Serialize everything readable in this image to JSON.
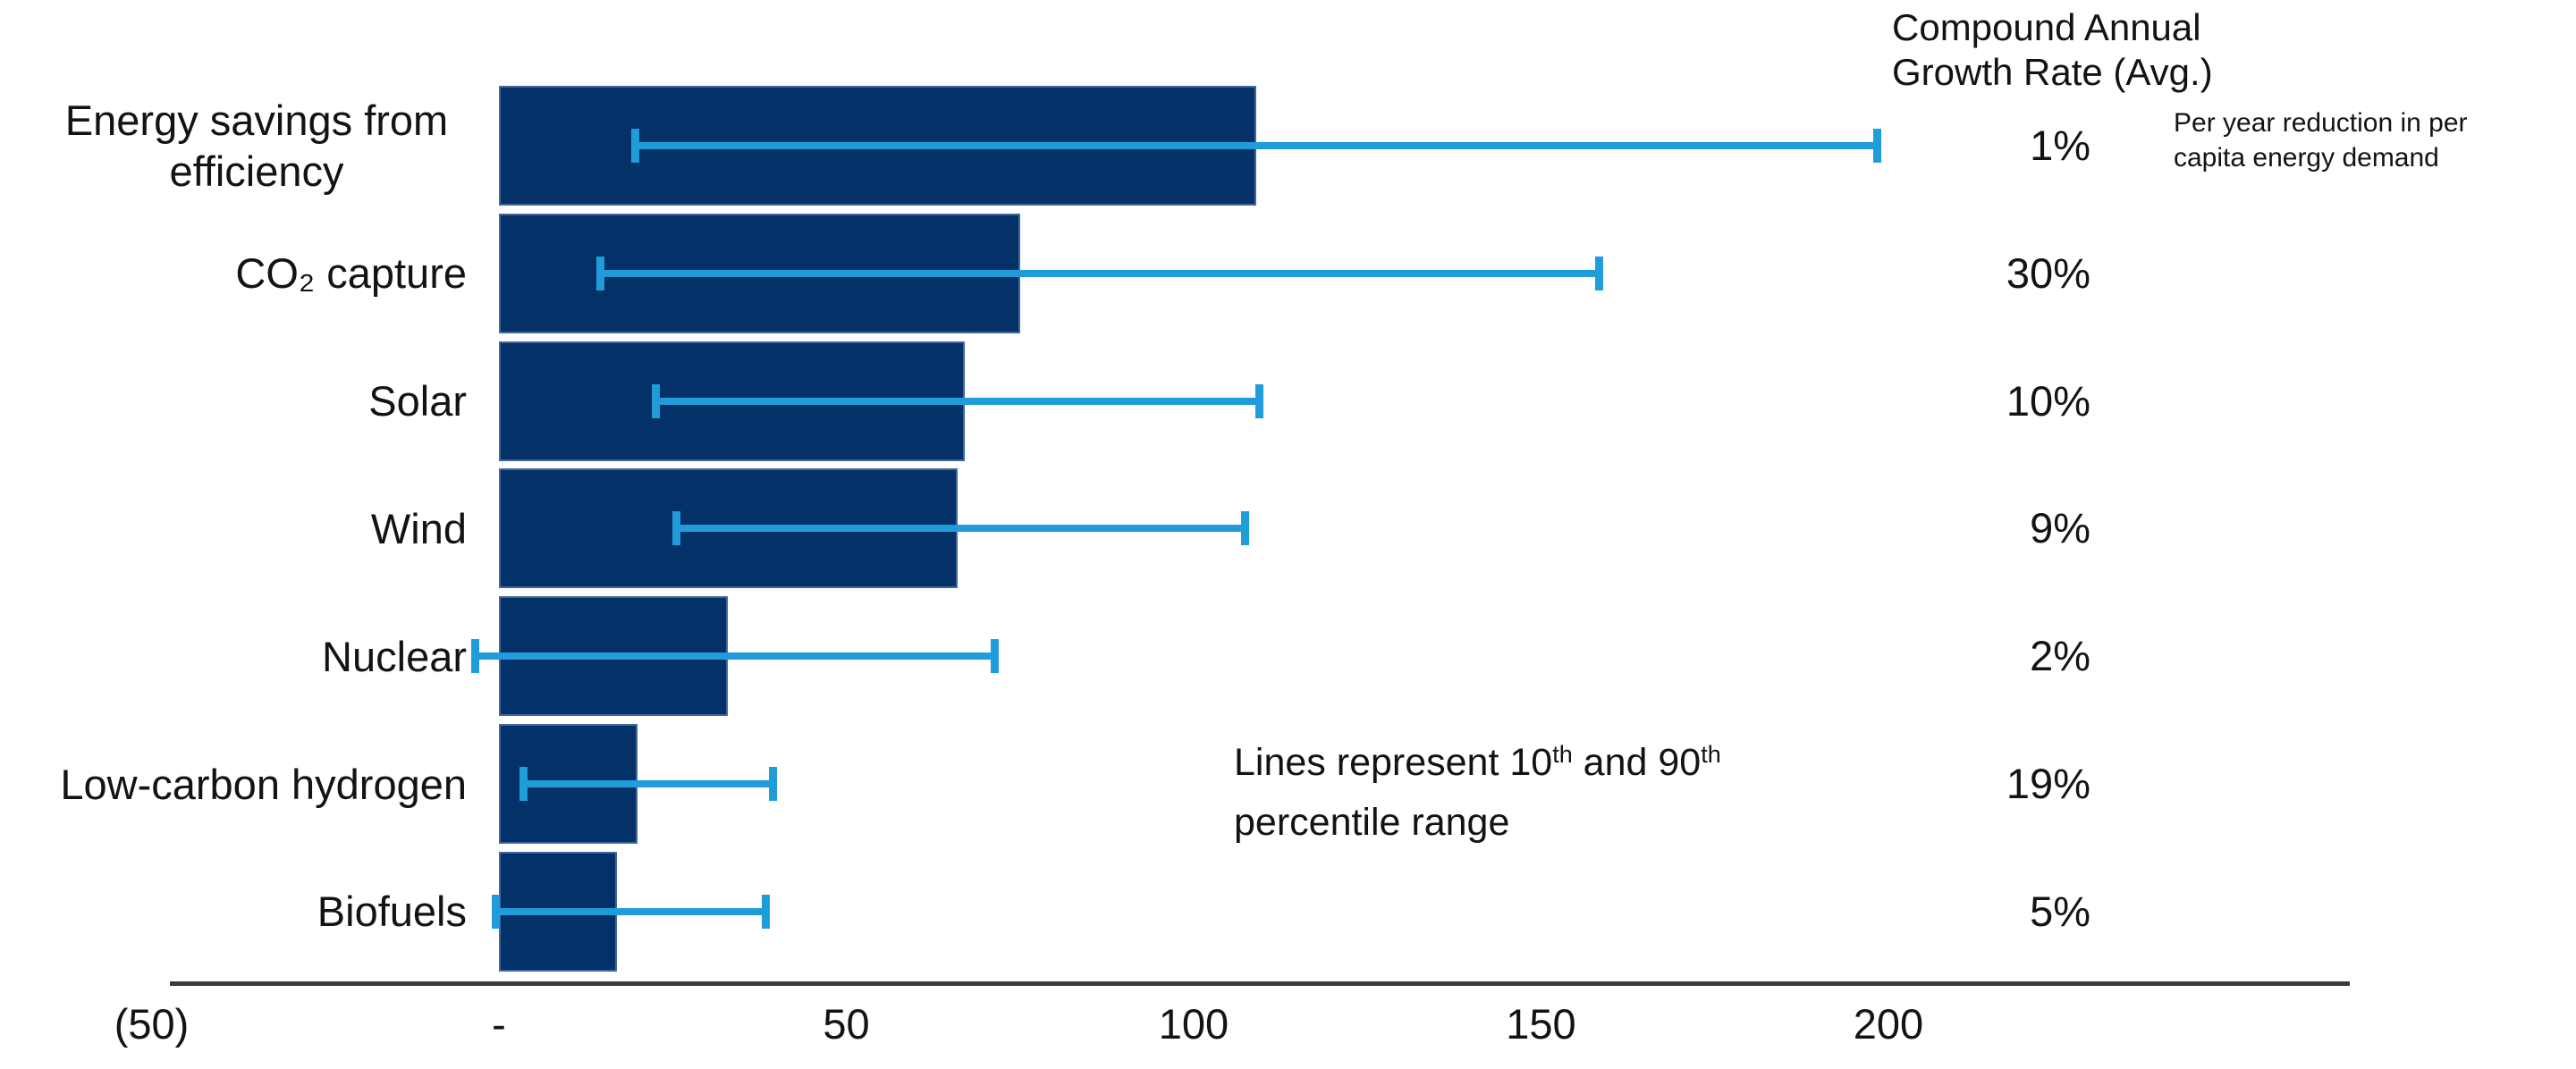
{
  "chart_data": {
    "type": "bar",
    "orientation": "horizontal",
    "title": "",
    "xlabel": "",
    "ylabel": "",
    "categories": [
      "Energy savings from efficiency",
      "CO₂ capture",
      "Solar",
      "Wind",
      "Nuclear",
      "Low-carbon hydrogen",
      "Biofuels"
    ],
    "values": [
      109,
      75,
      67,
      66,
      33,
      20,
      17
    ],
    "error_low": [
      19,
      14,
      22,
      25,
      -4,
      3,
      -1
    ],
    "error_high": [
      199,
      159,
      110,
      108,
      72,
      40,
      39
    ],
    "cagr_values": [
      "1%",
      "30%",
      "10%",
      "9%",
      "2%",
      "19%",
      "5%"
    ],
    "x_ticks": [
      {
        "label": "(50)",
        "value": -50
      },
      {
        "label": "-",
        "value": 0
      },
      {
        "label": "50",
        "value": 50
      },
      {
        "label": "100",
        "value": 100
      },
      {
        "label": "150",
        "value": 150
      },
      {
        "label": "200",
        "value": 200
      }
    ],
    "xlim": [
      -50,
      268
    ],
    "grid": false,
    "legend": "none",
    "error_note": "Lines represent 10th and 90th percentile range"
  },
  "cagr_header": {
    "line1": "Compound Annual",
    "line2": "Growth Rate (Avg.)"
  },
  "annotations": {
    "efficiency_note": {
      "line1": "Per year reduction in per",
      "line2": "capita energy demand"
    },
    "whisker_note": {
      "line1_parts": [
        "Lines represent 10",
        "th",
        " and 90",
        "th"
      ],
      "line2": "percentile range"
    }
  },
  "colors": {
    "bar": "#043168",
    "whisker": "#209cda",
    "axis_line": "#3a3a3a",
    "text": "#131313"
  }
}
